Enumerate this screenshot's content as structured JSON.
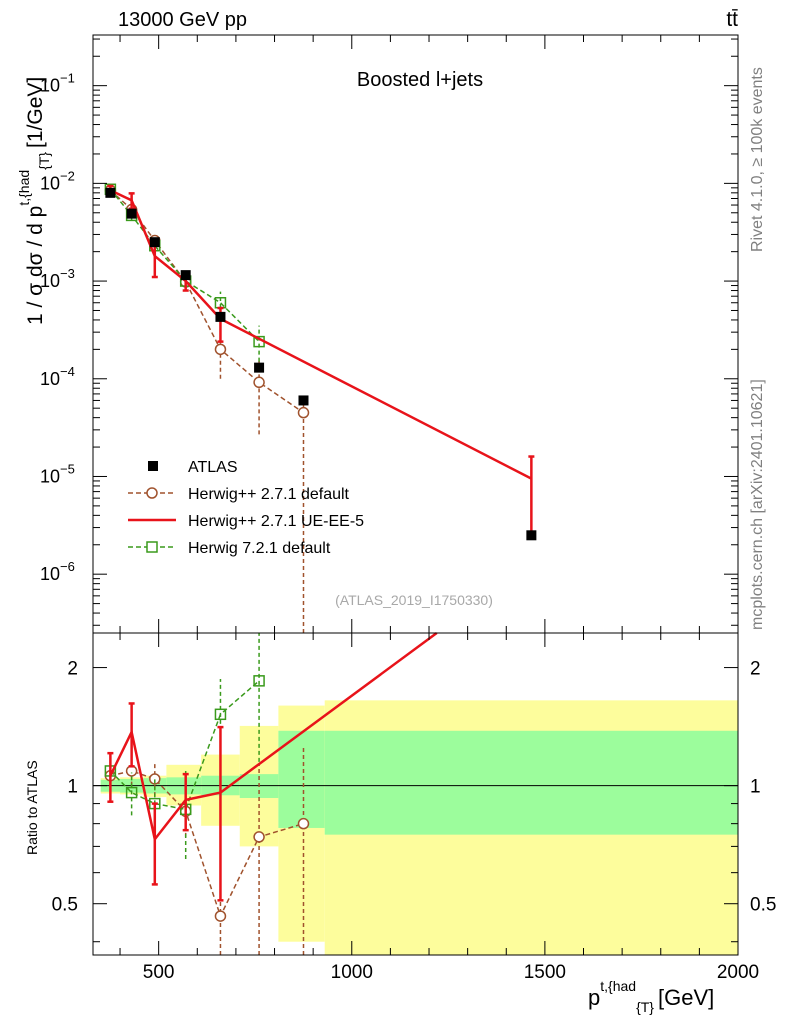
{
  "header": {
    "energy_label": "13000 GeV pp",
    "process_label": "tt̄",
    "rivet_label": "Rivet 4.1.0, ≥ 100k events",
    "source_label": "mcplots.cern.ch [arXiv:2401.10621]"
  },
  "colors": {
    "data": "#000000",
    "herwigpp_default": "#a0522d",
    "herwigpp_ueee5": "#e8131a",
    "herwig7_default": "#3a9a1c",
    "band_inner": "#9cfd9c",
    "band_outer": "#fdfd9c"
  },
  "chart_data": [
    {
      "type": "line",
      "name": "main",
      "title": "Boosted l+jets",
      "analysis_label": "(ATLAS_2019_I1750330)",
      "xlabel": "p^{t,{had}}_{T} [GeV]",
      "xlabel_main": "p",
      "xlabel_sup": "t,{had",
      "xlabel_sub": "{T}",
      "xlabel_unit": "[GeV]",
      "ylabel": "1 / σ dσ / d p^{t,{had}}_{T} [1/GeV]",
      "ylabel_main": "1 / σ dσ / d p",
      "ylabel_sup": "t,{had",
      "ylabel_sub": "{T}",
      "ylabel_unit": "[1/GeV]",
      "yscale": "log",
      "xlim": [
        330,
        2000
      ],
      "ylim": [
        2.5e-07,
        0.33
      ],
      "ytick_labels": [
        {
          "value": 1e-06,
          "base": "10",
          "exp": "−6"
        },
        {
          "value": 1e-05,
          "base": "10",
          "exp": "−5"
        },
        {
          "value": 0.0001,
          "base": "10",
          "exp": "−4"
        },
        {
          "value": 0.001,
          "base": "10",
          "exp": "−3"
        },
        {
          "value": 0.01,
          "base": "10",
          "exp": "−2"
        },
        {
          "value": 0.1,
          "base": "10",
          "exp": "−1"
        }
      ],
      "legend_position": "bottom-left",
      "series": [
        {
          "name": "ATLAS",
          "key": "data",
          "style": "square-marker",
          "x": [
            375,
            430,
            490,
            570,
            660,
            760,
            875,
            1465
          ],
          "y": [
            0.008,
            0.0049,
            0.0025,
            0.00115,
            0.00043,
            0.00013,
            6e-05,
            2.5e-06
          ]
        },
        {
          "name": "Herwig++ 2.7.1 default",
          "key": "herwigpp_default",
          "style": "dashed-circle",
          "x": [
            375,
            430,
            490,
            570,
            660,
            760,
            875
          ],
          "y": [
            0.0085,
            0.0054,
            0.0026,
            0.00098,
            0.0002,
            9.2e-05,
            4.5e-05
          ],
          "yerr_low": [
            0.0004,
            0.0004,
            0.0003,
            0.00015,
            0.0001,
            6.5e-05,
            4.5e-05
          ],
          "yerr_high": [
            0.0004,
            0.0004,
            0.0003,
            0.00015,
            0.0001,
            6e-05,
            1.5e-05
          ]
        },
        {
          "name": "Herwig++ 2.7.1 UE-EE-5",
          "key": "herwigpp_ueee5",
          "style": "solid-line",
          "x": [
            375,
            430,
            490,
            570,
            660,
            1465
          ],
          "y": [
            0.0085,
            0.0067,
            0.0018,
            0.001,
            0.00041,
            9.5e-06
          ],
          "yerr_low": [
            0.0009,
            0.0012,
            0.0007,
            0.0002,
            0.00017,
            7e-06
          ],
          "yerr_high": [
            0.0009,
            0.0012,
            0.0007,
            0.0002,
            0.00012,
            6.5e-06
          ]
        },
        {
          "name": "Herwig 7.2.1 default",
          "key": "herwig7_default",
          "style": "dashed-square",
          "x": [
            375,
            430,
            490,
            570,
            660,
            760
          ],
          "y": [
            0.0087,
            0.0047,
            0.0023,
            0.001,
            0.0006,
            0.00024
          ],
          "yerr_low": [
            0.0006,
            0.0005,
            0.0003,
            0.0002,
            0.00015,
            9e-05
          ],
          "yerr_high": [
            0.0006,
            0.0005,
            0.0003,
            0.0002,
            0.00018,
            0.00011
          ]
        }
      ]
    },
    {
      "type": "line",
      "name": "ratio",
      "ylabel": "Ratio to ATLAS",
      "yscale": "log",
      "xlim": [
        330,
        2000
      ],
      "ylim": [
        0.37,
        2.45
      ],
      "xticks": [
        500,
        1000,
        1500,
        2000
      ],
      "yticks": [
        0.5,
        1,
        2
      ],
      "reference": 1,
      "bands": {
        "x_edges": [
          350,
          400,
          460,
          520,
          610,
          710,
          810,
          930,
          2000
        ],
        "inner_low": [
          0.965,
          0.96,
          0.955,
          0.95,
          0.945,
          0.93,
          0.78,
          0.75
        ],
        "inner_high": [
          1.035,
          1.04,
          1.045,
          1.05,
          1.06,
          1.07,
          1.38,
          1.38
        ],
        "outer_low": [
          0.955,
          0.95,
          0.935,
          0.89,
          0.79,
          0.7,
          0.4,
          0.37
        ],
        "outer_high": [
          1.045,
          1.05,
          1.06,
          1.13,
          1.2,
          1.42,
          1.6,
          1.65
        ]
      },
      "series": [
        {
          "name": "Herwig++ 2.7.1 default",
          "key": "herwigpp_default",
          "style": "dashed-circle",
          "x": [
            375,
            430,
            490,
            570,
            660,
            760,
            875
          ],
          "y": [
            1.06,
            1.09,
            1.04,
            0.86,
            0.465,
            0.74,
            0.8
          ],
          "yerr_low": [
            0.07,
            0.09,
            0.1,
            0.12,
            0.25,
            0.4,
            0.45
          ],
          "yerr_high": [
            0.07,
            0.09,
            0.1,
            0.12,
            0.25,
            0.4,
            0.45
          ]
        },
        {
          "name": "Herwig++ 2.7.1 UE-EE-5",
          "key": "herwigpp_ueee5",
          "style": "solid-line",
          "x": [
            375,
            430,
            490,
            570,
            660,
            1220
          ],
          "y": [
            1.06,
            1.37,
            0.73,
            0.92,
            0.96,
            2.45
          ],
          "yerr_low": [
            0.15,
            0.25,
            0.17,
            0.15,
            0.45,
            0
          ],
          "yerr_high": [
            0.15,
            0.25,
            0.17,
            0.15,
            0.45,
            0
          ]
        },
        {
          "name": "Herwig 7.2.1 default",
          "key": "herwig7_default",
          "style": "dashed-square",
          "x": [
            375,
            430,
            490,
            570,
            660,
            760
          ],
          "y": [
            1.09,
            0.96,
            0.9,
            0.87,
            1.52,
            1.85
          ],
          "yerr_low": [
            0.1,
            0.12,
            0.14,
            0.22,
            0.35,
            0.7
          ],
          "yerr_high": [
            0.1,
            0.12,
            0.14,
            0.22,
            0.35,
            0.7
          ]
        }
      ]
    }
  ]
}
